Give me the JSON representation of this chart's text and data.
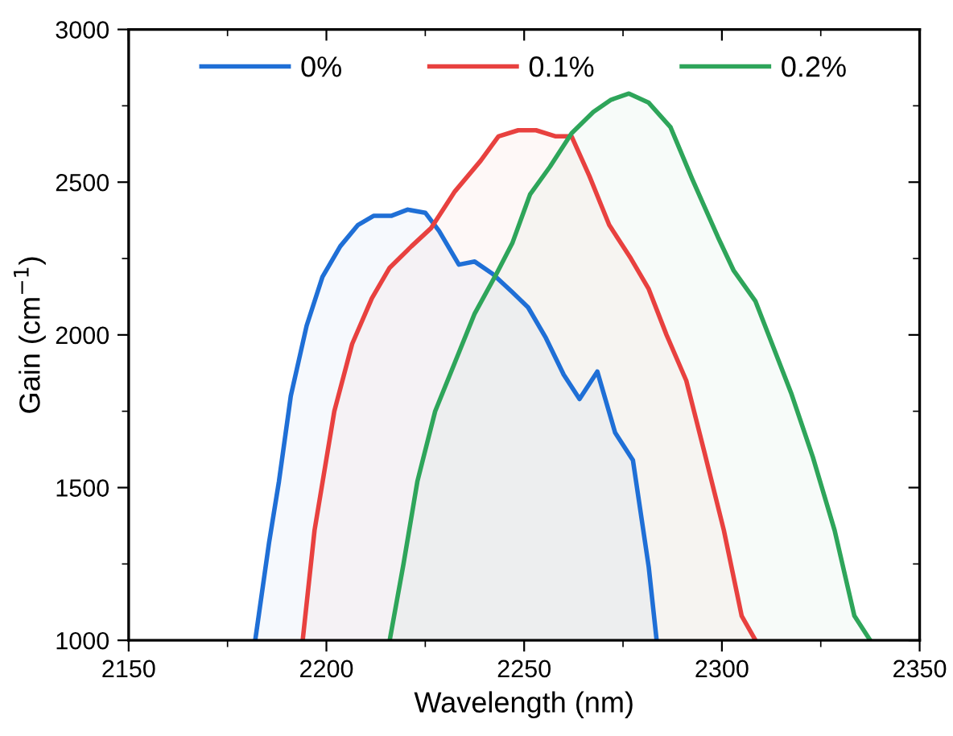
{
  "chart_data": {
    "type": "area",
    "xlabel": "Wavelength (nm)",
    "ylabel": "Gain (cm$^{−1}$)",
    "xlim": [
      2150,
      2350
    ],
    "xticks": [
      2150,
      2200,
      2250,
      2300,
      2350
    ],
    "ylim": [
      1000,
      3000
    ],
    "yticks": [
      1000,
      1500,
      2000,
      2500,
      3000
    ],
    "grid": false,
    "legend": "top",
    "marker": "none",
    "line_style": "solid",
    "series": [
      {
        "name": "0%",
        "color": "#1f6fd6",
        "x": [
          2182,
          2185.5,
          2188,
          2191,
          2195,
          2199,
          2203.5,
          2208,
          2212,
          2216.5,
          2220.5,
          2225,
          2228.5,
          2233.5,
          2237.5,
          2242,
          2247,
          2251,
          2255.5,
          2260,
          2264,
          2268.5,
          2273,
          2277.5,
          2281.5,
          2283.5
        ],
        "values": [
          1000,
          1320,
          1520,
          1800,
          2030,
          2190,
          2290,
          2360,
          2390,
          2390,
          2410,
          2400,
          2340,
          2230,
          2240,
          2200,
          2140,
          2090,
          1990,
          1870,
          1790,
          1880,
          1680,
          1590,
          1240,
          1000
        ]
      },
      {
        "name": "0.1%",
        "color": "#e8413f",
        "x": [
          2194,
          2197,
          2202,
          2206.5,
          2211.5,
          2216,
          2221.5,
          2226.5,
          2232.5,
          2239,
          2243.5,
          2248.5,
          2253,
          2258,
          2262,
          2266.5,
          2271.5,
          2277,
          2281.5,
          2286,
          2291,
          2295.5,
          2300.5,
          2305,
          2308.5
        ],
        "values": [
          1000,
          1360,
          1750,
          1970,
          2120,
          2220,
          2290,
          2350,
          2470,
          2570,
          2650,
          2670,
          2670,
          2650,
          2650,
          2520,
          2360,
          2250,
          2150,
          2000,
          1850,
          1620,
          1360,
          1080,
          1000
        ]
      },
      {
        "name": "0.2%",
        "color": "#2ea55a",
        "x": [
          2216,
          2219.5,
          2223,
          2227.5,
          2232.5,
          2237.5,
          2243,
          2247,
          2251.5,
          2256.5,
          2262,
          2267.5,
          2272,
          2276.5,
          2281.5,
          2287,
          2292.5,
          2299,
          2303,
          2308.5,
          2313,
          2317.5,
          2323,
          2328.5,
          2333.5,
          2337.5
        ],
        "values": [
          1000,
          1250,
          1520,
          1750,
          1910,
          2070,
          2200,
          2300,
          2460,
          2550,
          2660,
          2730,
          2770,
          2790,
          2760,
          2680,
          2510,
          2320,
          2210,
          2110,
          1960,
          1810,
          1600,
          1360,
          1080,
          1000
        ]
      }
    ]
  }
}
